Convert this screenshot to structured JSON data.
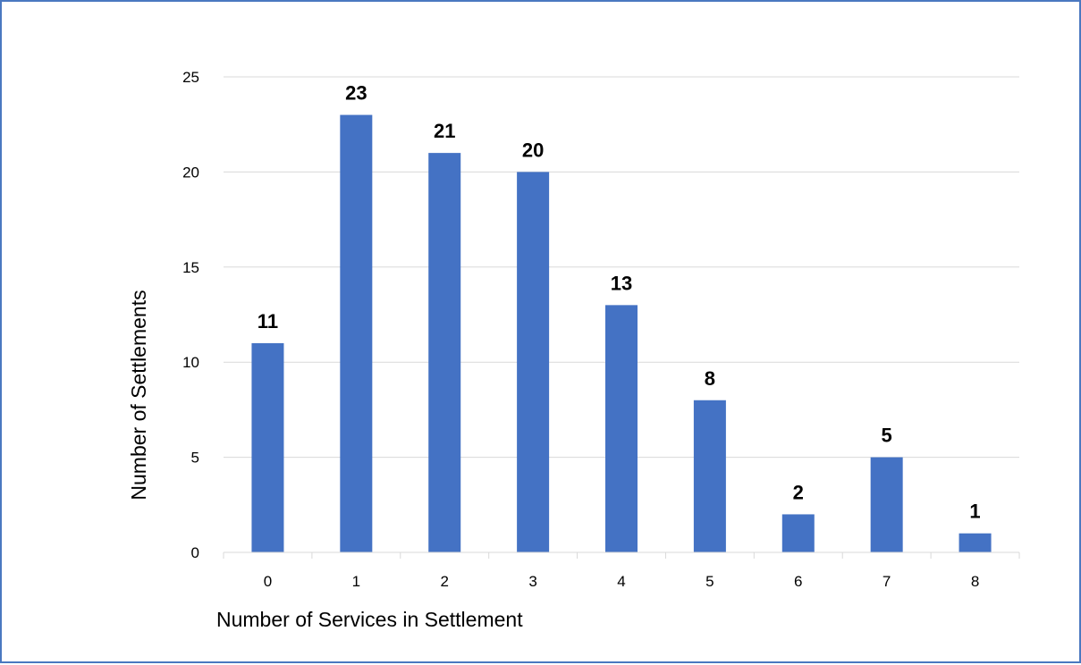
{
  "chart_data": {
    "type": "bar",
    "title": "",
    "xlabel": "Number of Services in Settlement",
    "ylabel": "Number of Settlements",
    "categories": [
      "0",
      "1",
      "2",
      "3",
      "4",
      "5",
      "6",
      "7",
      "8"
    ],
    "values": [
      11,
      23,
      21,
      20,
      13,
      8,
      2,
      5,
      1
    ],
    "data_labels": [
      "11",
      "23",
      "21",
      "20",
      "13",
      "8",
      "2",
      "5",
      "1"
    ],
    "ylim": [
      0,
      25
    ],
    "yticks": [
      0,
      5,
      10,
      15,
      20,
      25
    ],
    "ytick_labels": [
      "0",
      "5",
      "10",
      "15",
      "20",
      "25"
    ],
    "grid": true,
    "legend": "none",
    "bar_color": "#4472c4",
    "grid_color": "#d9d9d9",
    "border_color": "#4a78c0"
  }
}
